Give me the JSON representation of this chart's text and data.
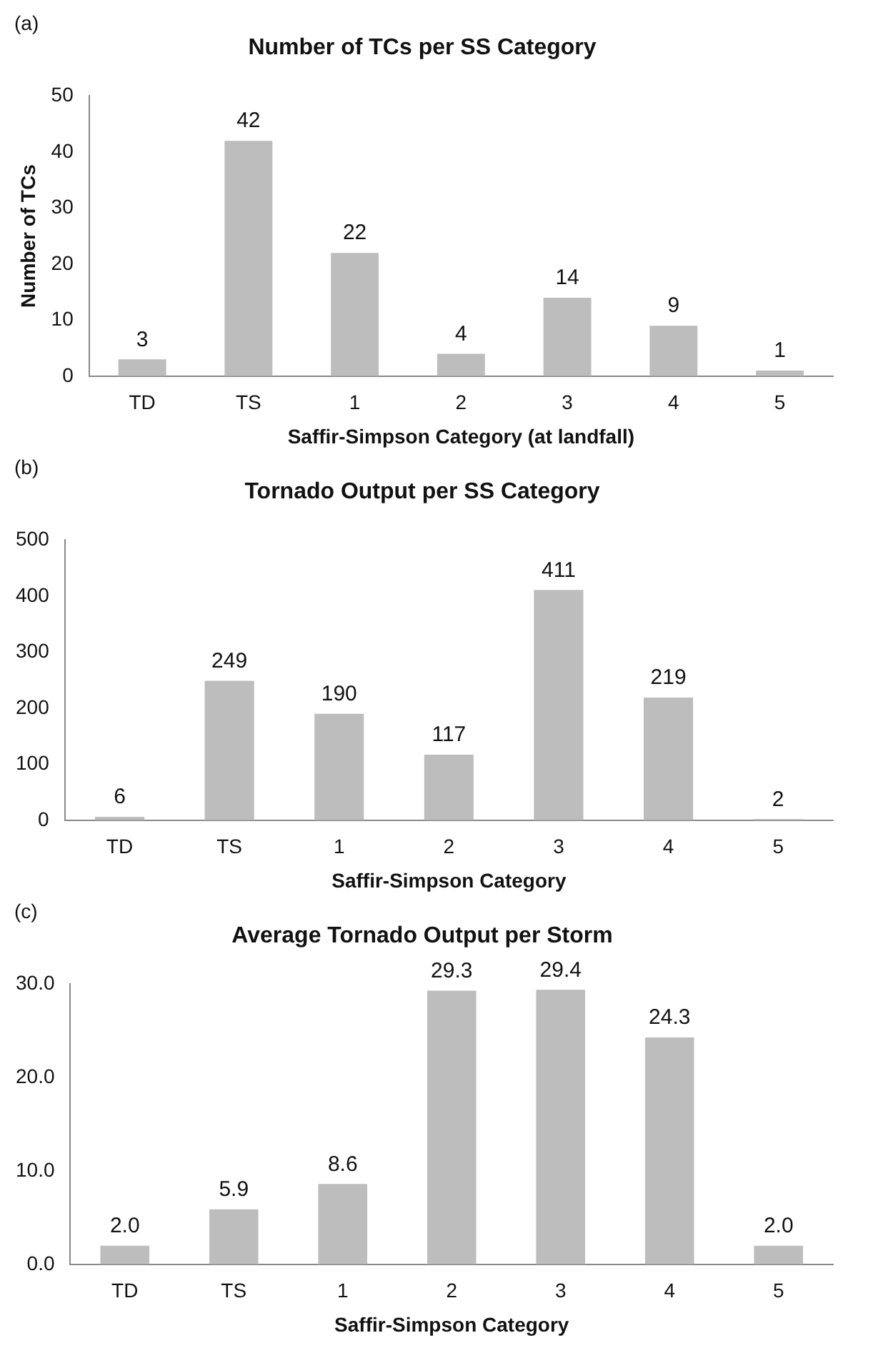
{
  "chart_data": [
    {
      "type": "bar",
      "title": "Number of TCs per SS Category",
      "xlabel": "Saffir-Simpson Category (at landfall)",
      "ylabel": "Number of TCs",
      "annotations": [
        "(a)"
      ],
      "categories": [
        "TD",
        "TS",
        "1",
        "2",
        "3",
        "4",
        "5"
      ],
      "values": [
        3,
        42,
        22,
        4,
        14,
        9,
        1
      ],
      "color": "#bdbdbd",
      "ylim": [
        0,
        50
      ],
      "yticks": [
        0,
        10,
        20,
        30,
        40,
        50
      ],
      "data_labels": true
    },
    {
      "type": "bar",
      "title": "Tornado Output per SS Category",
      "xlabel": "Saffir-Simpson Category",
      "annotations": [
        "(b)"
      ],
      "categories": [
        "TD",
        "TS",
        "1",
        "2",
        "3",
        "4",
        "5"
      ],
      "values": [
        6,
        249,
        190,
        117,
        411,
        219,
        2
      ],
      "color": "#bdbdbd",
      "ylim": [
        0,
        500
      ],
      "yticks": [
        0,
        100,
        200,
        300,
        400,
        500
      ],
      "data_labels": true
    },
    {
      "type": "bar",
      "title": "Average Tornado Output per Storm",
      "xlabel": "Saffir-Simpson Category",
      "annotations": [
        "(c)"
      ],
      "categories": [
        "TD",
        "TS",
        "1",
        "2",
        "3",
        "4",
        "5"
      ],
      "values": [
        2,
        5.9,
        8.6,
        29.3,
        29.4,
        24.3,
        2
      ],
      "value_labels": [
        "2.0",
        "5.9",
        "8.6",
        "29.3",
        "29.4",
        "24.3",
        "2.0"
      ],
      "color": "#bdbdbd",
      "ylim": [
        0,
        30
      ],
      "yticks": [
        {
          "value": 0,
          "label": "0.0"
        },
        {
          "value": 10,
          "label": "10.0"
        },
        {
          "value": 20,
          "label": "20.0"
        },
        {
          "value": 30,
          "label": "30.0"
        }
      ]
    }
  ]
}
